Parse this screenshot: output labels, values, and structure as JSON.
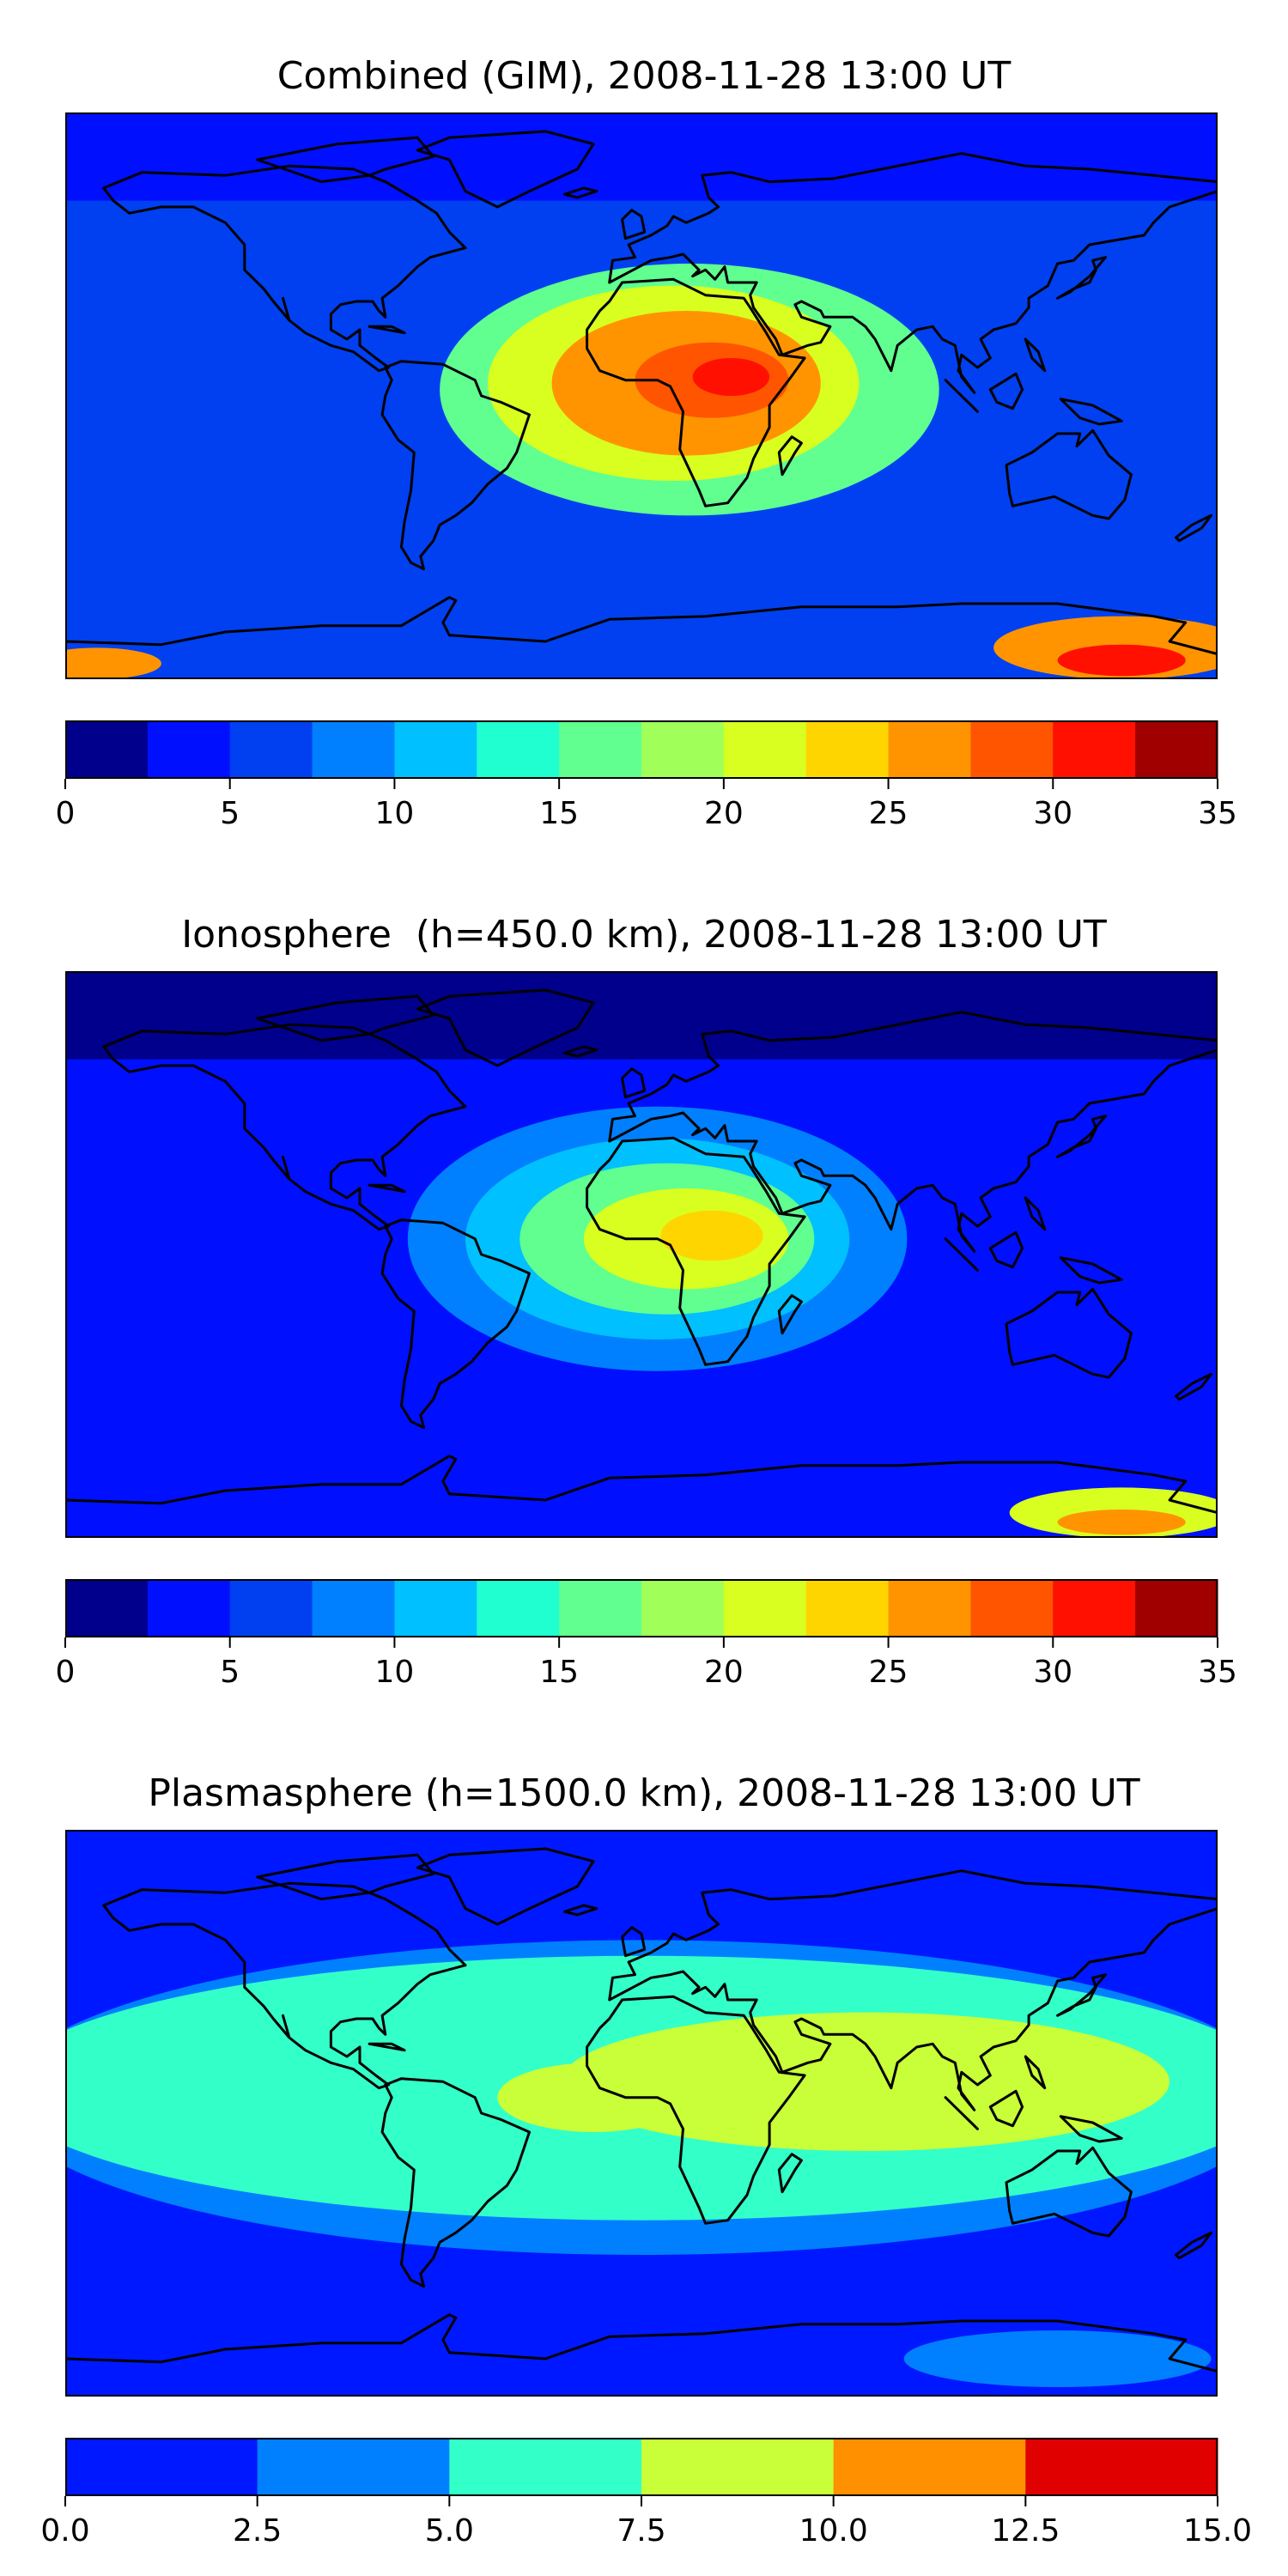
{
  "chart_data": [
    {
      "type": "heatmap",
      "title": "Combined (GIM), 2008-11-28 13:00 UT",
      "colorbar": {
        "ticks": [
          "0",
          "5",
          "10",
          "15",
          "20",
          "25",
          "30",
          "35"
        ],
        "levels": [
          0,
          2.5,
          5,
          7.5,
          10,
          12.5,
          15,
          17.5,
          20,
          22.5,
          25,
          27.5,
          30,
          32.5,
          35
        ],
        "colors": [
          "#00008c",
          "#0010ff",
          "#0040f0",
          "#0080ff",
          "#00c0ff",
          "#20ffd0",
          "#60ff90",
          "#a0ff58",
          "#d8ff20",
          "#ffd500",
          "#ff9400",
          "#ff5500",
          "#ff1000",
          "#a00000"
        ]
      },
      "background_level": 2,
      "features": [
        {
          "lon": 15,
          "lat": 2,
          "rx": 78,
          "ry": 40,
          "level": 6
        },
        {
          "lon": 10,
          "lat": 4,
          "rx": 58,
          "ry": 31,
          "level": 8
        },
        {
          "lon": 14,
          "lat": 4,
          "rx": 42,
          "ry": 23,
          "level": 10
        },
        {
          "lon": 22,
          "lat": 5,
          "rx": 24,
          "ry": 12,
          "level": 11
        },
        {
          "lon": 28,
          "lat": 6,
          "rx": 12,
          "ry": 6,
          "level": 12
        },
        {
          "lon": 150,
          "lat": -80,
          "rx": 40,
          "ry": 10,
          "level": 10
        },
        {
          "lon": 150,
          "lat": -84,
          "rx": 20,
          "ry": 5,
          "level": 12
        },
        {
          "lon": -170,
          "lat": -85,
          "rx": 20,
          "ry": 5,
          "level": 10
        }
      ]
    },
    {
      "type": "heatmap",
      "title": "Ionosphere  (h=450.0 km), 2008-11-28 13:00 UT",
      "colorbar": {
        "ticks": [
          "0",
          "5",
          "10",
          "15",
          "20",
          "25",
          "30",
          "35"
        ],
        "levels": [
          0,
          2.5,
          5,
          7.5,
          10,
          12.5,
          15,
          17.5,
          20,
          22.5,
          25,
          27.5,
          30,
          32.5,
          35
        ],
        "colors": [
          "#00008c",
          "#0010ff",
          "#0040f0",
          "#0080ff",
          "#00c0ff",
          "#20ffd0",
          "#60ff90",
          "#a0ff58",
          "#d8ff20",
          "#ffd500",
          "#ff9400",
          "#ff5500",
          "#ff1000",
          "#a00000"
        ]
      },
      "background_level": 1,
      "features": [
        {
          "lon": 5,
          "lat": 5,
          "rx": 78,
          "ry": 42,
          "level": 3
        },
        {
          "lon": 5,
          "lat": 5,
          "rx": 60,
          "ry": 32,
          "level": 4
        },
        {
          "lon": 8,
          "lat": 5,
          "rx": 46,
          "ry": 24,
          "level": 6
        },
        {
          "lon": 14,
          "lat": 5,
          "rx": 32,
          "ry": 16,
          "level": 8
        },
        {
          "lon": 22,
          "lat": 6,
          "rx": 16,
          "ry": 8,
          "level": 9
        },
        {
          "lon": 150,
          "lat": -82,
          "rx": 35,
          "ry": 8,
          "level": 8
        },
        {
          "lon": 150,
          "lat": -85,
          "rx": 20,
          "ry": 4,
          "level": 10
        }
      ]
    },
    {
      "type": "heatmap",
      "title": "Plasmasphere (h=1500.0 km), 2008-11-28 13:00 UT",
      "colorbar": {
        "ticks": [
          "0.0",
          "2.5",
          "5.0",
          "7.5",
          "10.0",
          "12.5",
          "15.0"
        ],
        "levels": [
          0,
          2.5,
          5,
          7.5,
          10,
          12.5,
          15
        ],
        "colors": [
          "#0018ff",
          "#0080ff",
          "#33ffc8",
          "#c8ff38",
          "#ff9000",
          "#e00000"
        ]
      },
      "background_level": 0,
      "features": [
        {
          "lon": 0,
          "lat": 5,
          "rx": 200,
          "ry": 50,
          "level": 1
        },
        {
          "lon": 0,
          "lat": 8,
          "rx": 200,
          "ry": 42,
          "level": 2
        },
        {
          "lon": 70,
          "lat": 10,
          "rx": 95,
          "ry": 22,
          "level": 3
        },
        {
          "lon": -15,
          "lat": 5,
          "rx": 30,
          "ry": 11,
          "level": 3
        },
        {
          "lon": 130,
          "lat": -78,
          "rx": 48,
          "ry": 9,
          "level": 1
        }
      ]
    }
  ]
}
